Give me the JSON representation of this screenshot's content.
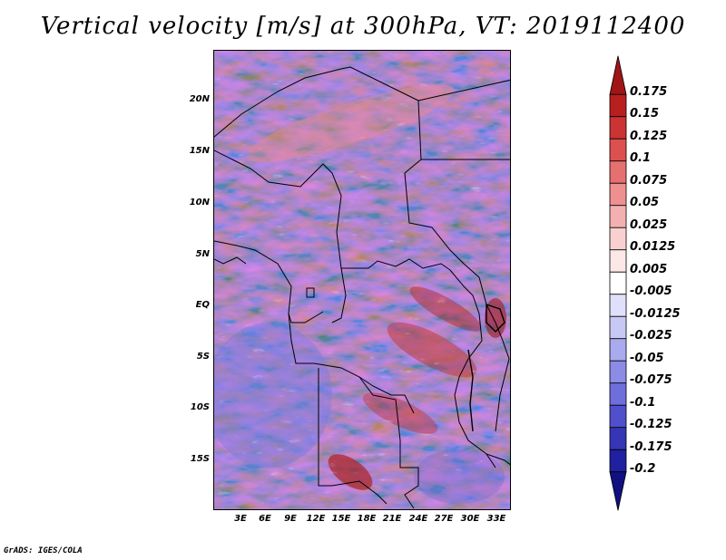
{
  "title": "Vertical velocity [m/s] at 300hPa, VT: 2019112400",
  "footer": "GrADS: IGES/COLA",
  "map": {
    "lat_labels": [
      "20N",
      "15N",
      "10N",
      "5N",
      "EQ",
      "5S",
      "10S",
      "15S"
    ],
    "lon_labels": [
      "3E",
      "6E",
      "9E",
      "12E",
      "15E",
      "18E",
      "21E",
      "24E",
      "27E",
      "30E",
      "33E"
    ]
  },
  "colorbar": {
    "levels": [
      "0.175",
      "0.15",
      "0.125",
      "0.1",
      "0.075",
      "0.05",
      "0.025",
      "0.0125",
      "0.005",
      "-0.005",
      "-0.0125",
      "-0.025",
      "-0.05",
      "-0.075",
      "-0.1",
      "-0.125",
      "-0.175",
      "-0.2"
    ],
    "colors": [
      "#a01515",
      "#b82020",
      "#cc3333",
      "#dd5050",
      "#e57070",
      "#ee9090",
      "#f4b0b0",
      "#f9d0d0",
      "#fde8e8",
      "#ffffff",
      "#e0e0fa",
      "#c8c8f5",
      "#aaaaee",
      "#8c8ce6",
      "#6e6edc",
      "#5050cc",
      "#3535b5",
      "#2020a0",
      "#101080"
    ]
  }
}
